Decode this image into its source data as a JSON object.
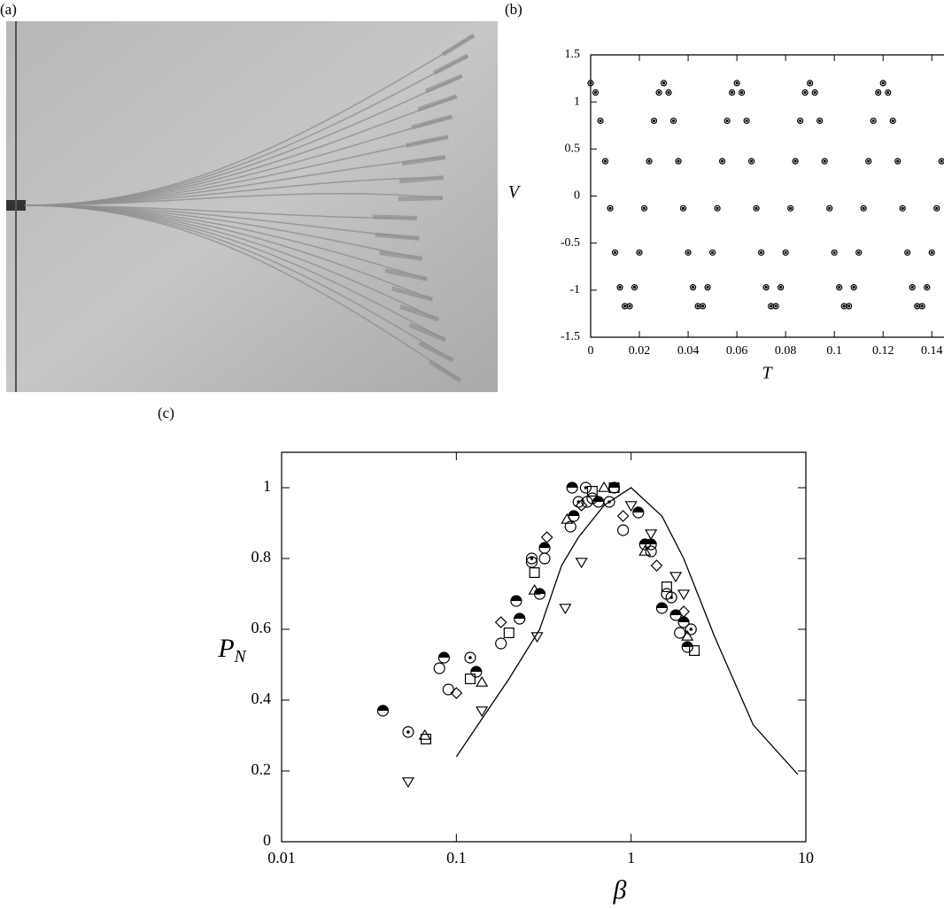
{
  "panel_labels": [
    "(a)",
    "(b)",
    "(c)"
  ],
  "chart_data": [
    {
      "type": "scatter",
      "xlabel": "T",
      "ylabel": "V",
      "xlim": [
        0,
        0.145
      ],
      "ylim": [
        -1.5,
        1.5
      ],
      "xticks": [
        0,
        0.02,
        0.04,
        0.06,
        0.08,
        0.1,
        0.12,
        0.14
      ],
      "yticks": [
        -1.5,
        -1,
        -0.5,
        0,
        0.5,
        1,
        1.5
      ],
      "series": [
        {
          "marker": "dotted-circle",
          "color": "#000000",
          "x": [
            0,
            0.002,
            0.004,
            0.006,
            0.008,
            0.01,
            0.012,
            0.014,
            0.016,
            0.018,
            0.02,
            0.022,
            0.024,
            0.026,
            0.028,
            0.03,
            0.032,
            0.034,
            0.036,
            0.038,
            0.04,
            0.042,
            0.044,
            0.046,
            0.048,
            0.05,
            0.052,
            0.054,
            0.056,
            0.058,
            0.06,
            0.062,
            0.064,
            0.066,
            0.068,
            0.07,
            0.072,
            0.074,
            0.076,
            0.078,
            0.08,
            0.082,
            0.084,
            0.086,
            0.088,
            0.09,
            0.092,
            0.094,
            0.096,
            0.098,
            0.1,
            0.102,
            0.104,
            0.106,
            0.108,
            0.11,
            0.112,
            0.114,
            0.116,
            0.118,
            0.12,
            0.122,
            0.124,
            0.126,
            0.128,
            0.13,
            0.132,
            0.134,
            0.136,
            0.138,
            0.14,
            0.142,
            0.144
          ],
          "values": [
            1.2,
            1.1,
            0.8,
            0.37,
            -0.13,
            -0.6,
            -0.97,
            -1.17,
            -1.17,
            -0.97,
            -0.6,
            -0.13,
            0.37,
            0.8,
            1.1,
            1.2,
            1.1,
            0.8,
            0.37,
            -0.13,
            -0.6,
            -0.97,
            -1.17,
            -1.17,
            -0.97,
            -0.6,
            -0.13,
            0.37,
            0.8,
            1.1,
            1.2,
            1.1,
            0.8,
            0.37,
            -0.13,
            -0.6,
            -0.97,
            -1.17,
            -1.17,
            -0.97,
            -0.6,
            -0.13,
            0.37,
            0.8,
            1.1,
            1.2,
            1.1,
            0.8,
            0.37,
            -0.13,
            -0.6,
            -0.97,
            -1.17,
            -1.17,
            -0.97,
            -0.6,
            -0.13,
            0.37,
            0.8,
            1.1,
            1.2,
            1.1,
            0.8,
            0.37,
            -0.13,
            -0.6,
            -0.97,
            -1.17,
            -1.17,
            -0.97,
            -0.6,
            -0.13,
            0.37
          ]
        }
      ]
    },
    {
      "type": "scatter",
      "xlabel": "β",
      "ylabel": "P",
      "ylabel_sub": "N",
      "xscale": "log",
      "xlim": [
        0.01,
        10
      ],
      "ylim": [
        0,
        1.1
      ],
      "xticks": [
        0.01,
        0.1,
        1,
        10
      ],
      "yticks": [
        0,
        0.2,
        0.4,
        0.6,
        0.8,
        1
      ],
      "series": [
        {
          "marker": "line",
          "color": "#000000",
          "x": [
            0.1,
            0.2,
            0.3,
            0.4,
            0.5,
            0.7,
            1,
            1.5,
            2,
            3,
            5,
            9
          ],
          "values": [
            0.24,
            0.46,
            0.6,
            0.78,
            0.86,
            0.95,
            1.0,
            0.92,
            0.8,
            0.58,
            0.33,
            0.19
          ]
        },
        {
          "marker": "triangle-down",
          "color": "#000000",
          "x": [
            0.053,
            0.14,
            0.29,
            0.42,
            0.52,
            1.0,
            1.3,
            1.8,
            2.0
          ],
          "values": [
            0.17,
            0.37,
            0.58,
            0.66,
            0.79,
            0.95,
            0.87,
            0.75,
            0.7
          ]
        },
        {
          "marker": "half-circle",
          "color": "#000000",
          "x": [
            0.038,
            0.085,
            0.13,
            0.22,
            0.23,
            0.3,
            0.32,
            0.46,
            0.47,
            0.65,
            0.8,
            1.1,
            1.2,
            1.3,
            1.5,
            1.8,
            2.1,
            2.0
          ],
          "values": [
            0.37,
            0.52,
            0.48,
            0.68,
            0.63,
            0.7,
            0.83,
            1.0,
            0.92,
            0.96,
            1.0,
            0.93,
            0.84,
            0.84,
            0.66,
            0.64,
            0.55,
            0.62
          ]
        },
        {
          "marker": "circle",
          "color": "#000000",
          "x": [
            0.08,
            0.09,
            0.18,
            0.27,
            0.32,
            0.45,
            0.56,
            0.6,
            0.9,
            1.3,
            1.6,
            1.9
          ],
          "values": [
            0.49,
            0.43,
            0.56,
            0.79,
            0.8,
            0.89,
            0.96,
            0.97,
            0.88,
            0.82,
            0.7,
            0.59
          ]
        },
        {
          "marker": "dotted-circle",
          "color": "#000000",
          "x": [
            0.053,
            0.12,
            0.27,
            0.5,
            0.55,
            0.75,
            1.7,
            2.2
          ],
          "values": [
            0.31,
            0.52,
            0.8,
            0.96,
            1.0,
            0.96,
            0.69,
            0.6
          ]
        },
        {
          "marker": "square",
          "color": "#000000",
          "x": [
            0.067,
            0.12,
            0.2,
            0.28,
            0.6,
            0.8,
            1.6,
            2.3
          ],
          "values": [
            0.29,
            0.46,
            0.59,
            0.76,
            0.99,
            1.0,
            0.72,
            0.54
          ]
        },
        {
          "marker": "diamond",
          "color": "#000000",
          "x": [
            0.1,
            0.18,
            0.33,
            0.52,
            0.9,
            1.4,
            2.0
          ],
          "values": [
            0.42,
            0.62,
            0.86,
            0.95,
            0.92,
            0.78,
            0.65
          ]
        },
        {
          "marker": "triangle-up",
          "color": "#000000",
          "x": [
            0.066,
            0.14,
            0.28,
            0.43,
            0.7,
            1.2,
            2.1
          ],
          "values": [
            0.3,
            0.45,
            0.71,
            0.91,
            1.0,
            0.82,
            0.58
          ]
        }
      ]
    }
  ]
}
